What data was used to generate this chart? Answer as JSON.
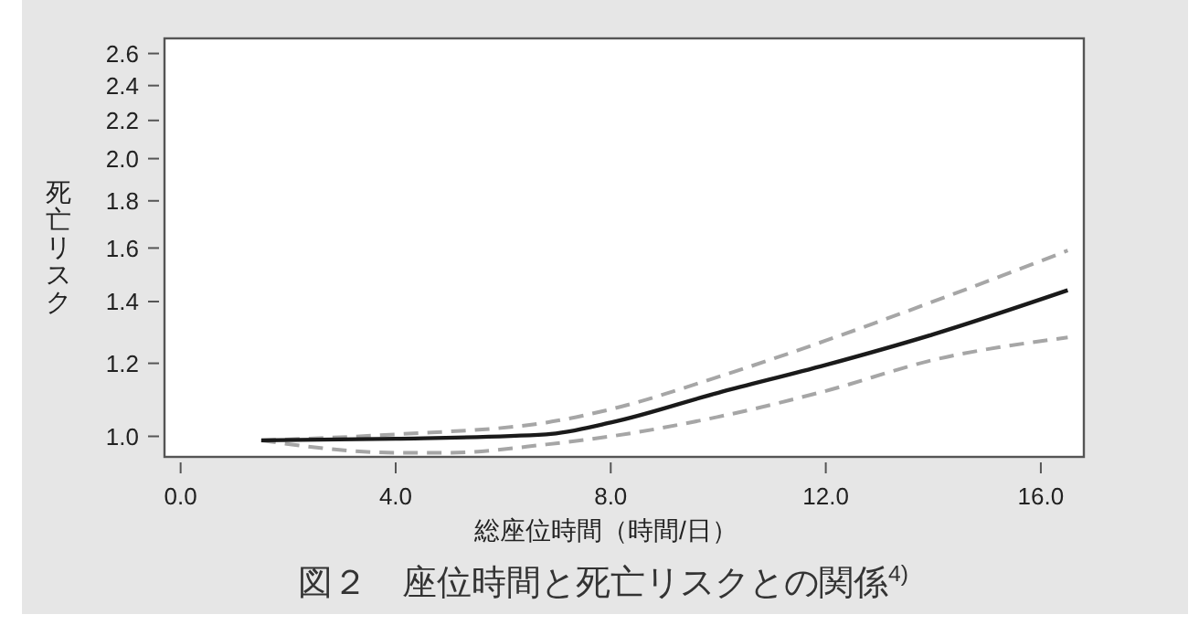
{
  "chart_data": {
    "type": "line",
    "title": "図２　座位時間と死亡リスクとの関係$^{4)}$",
    "xlabel": "総座位時間（時間/日）",
    "ylabel": "死亡リスク",
    "log": "y",
    "xlim": [
      -0.3,
      16.8
    ],
    "ylim": [
      0.95,
      2.7
    ],
    "xticks": [
      {
        "value": 0,
        "label": "0.0"
      },
      {
        "value": 4,
        "label": "4.0"
      },
      {
        "value": 8,
        "label": "8.0"
      },
      {
        "value": 12,
        "label": "12.0"
      },
      {
        "value": 16,
        "label": "16.0"
      }
    ],
    "yticks": [
      {
        "value": 1,
        "label": "1.0"
      },
      1.2,
      1.4,
      1.6,
      1.8,
      {
        "value": 2,
        "label": "2.0"
      },
      2.2,
      2.4,
      2.6
    ],
    "x": [
      1.5,
      4,
      6.8,
      8,
      10,
      12,
      14,
      16.5
    ],
    "grid": false,
    "marker": "none",
    "series": [
      {
        "color": "#a6a6a6",
        "line_style": "dashed",
        "values": [
          0.99,
          1.005,
          1.035,
          1.07,
          1.16,
          1.27,
          1.4,
          1.59
        ]
      },
      {
        "color": "#a6a6a6",
        "line_style": "dashed",
        "x": [
          1.5,
          4,
          5,
          6.8,
          8,
          10,
          12,
          14,
          16.5
        ],
        "values": [
          0.99,
          0.96,
          0.96,
          0.98,
          1.0,
          1.05,
          1.12,
          1.21,
          1.28
        ]
      },
      {
        "color": "#1a1a1a",
        "line_style": "solid",
        "values": [
          0.99,
          0.994,
          1.005,
          1.035,
          1.115,
          1.195,
          1.29,
          1.44
        ]
      }
    ]
  }
}
